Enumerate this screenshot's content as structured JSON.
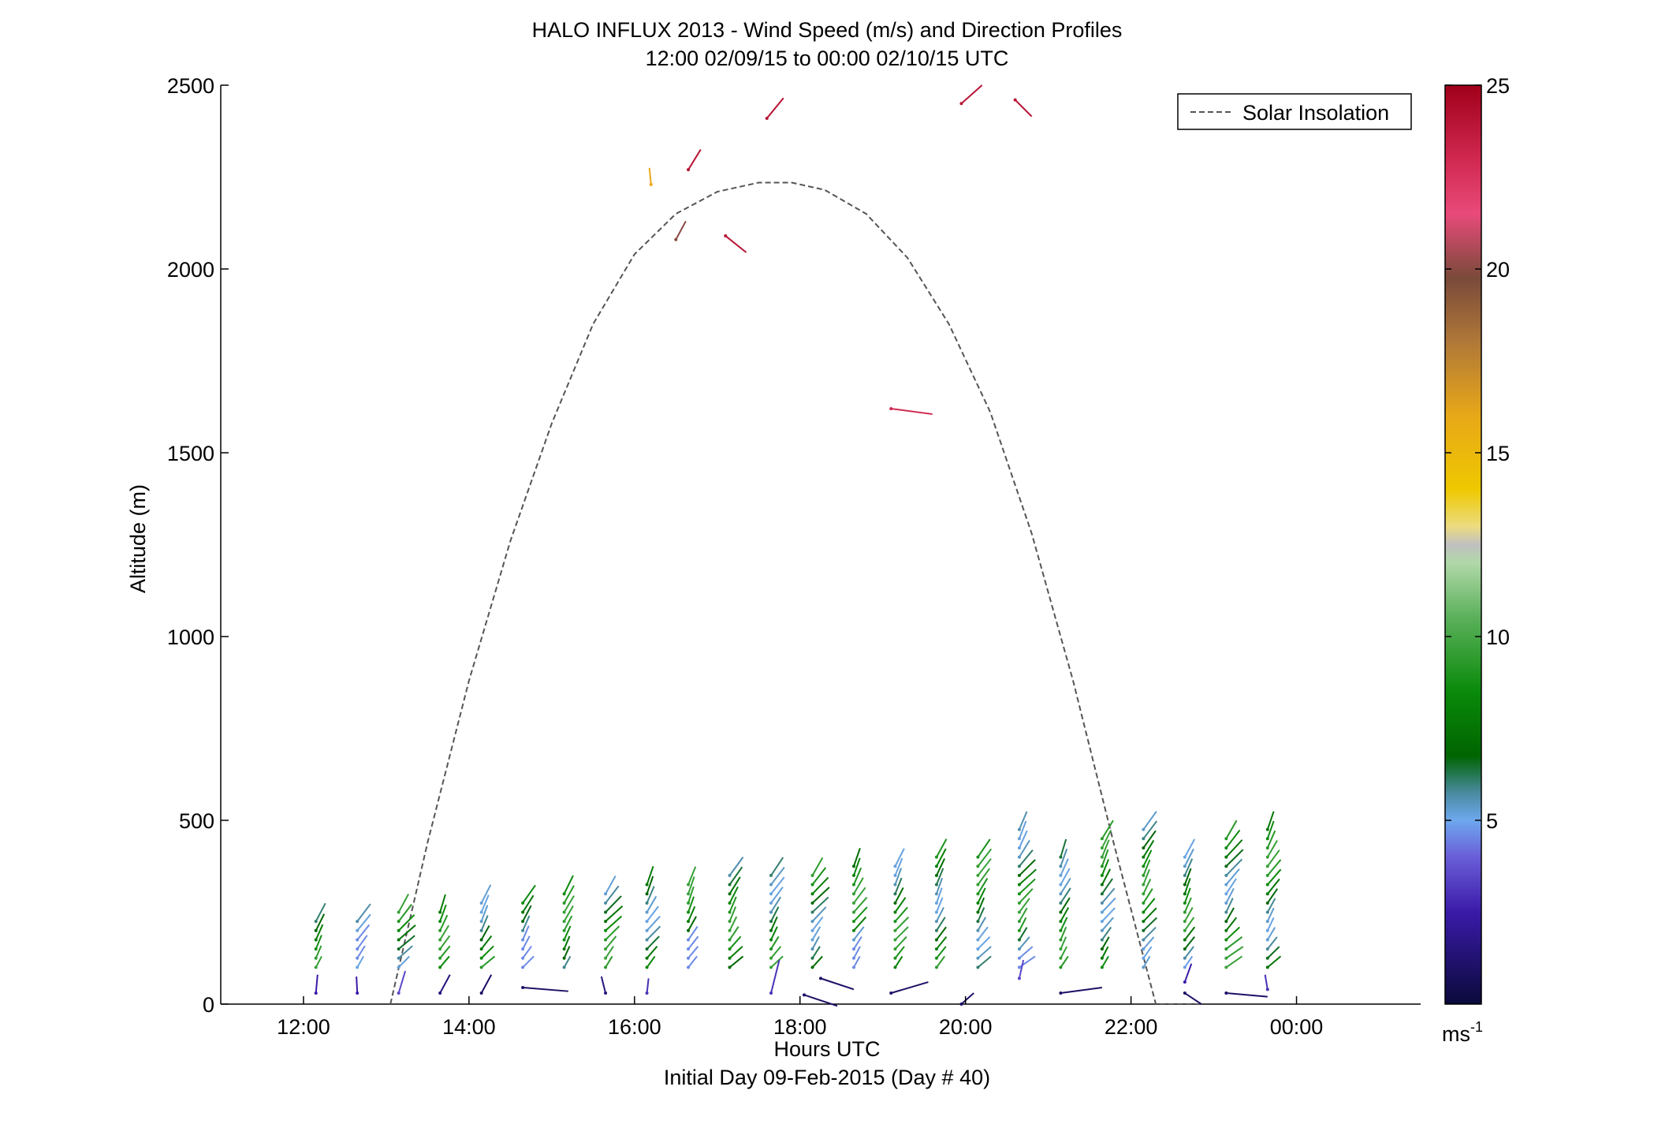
{
  "chart_data": {
    "type": "quiver",
    "title": "HALO INFLUX 2013 - Wind Speed (m/s) and Direction Profiles",
    "subtitle": "12:00 02/09/15 to 00:00 02/10/15  UTC",
    "xlabel": "Hours UTC",
    "xlabel2": "Initial Day 09-Feb-2015 (Day # 40)",
    "ylabel": "Altitude (m)",
    "xlim": [
      11,
      25.5
    ],
    "ylim": [
      0,
      2500
    ],
    "x_ticks": [
      12,
      14,
      16,
      18,
      20,
      22,
      24
    ],
    "x_tick_labels": [
      "12:00",
      "14:00",
      "16:00",
      "18:00",
      "20:00",
      "22:00",
      "00:00"
    ],
    "y_ticks": [
      0,
      500,
      1000,
      1500,
      2000,
      2500
    ],
    "y_tick_labels": [
      "0",
      "500",
      "1000",
      "1500",
      "2000",
      "2500"
    ],
    "legend": {
      "entries": [
        "Solar Insolation"
      ],
      "placement": "top-right"
    },
    "colorbar": {
      "range": [
        0,
        25
      ],
      "ticks": [
        5,
        10,
        15,
        20,
        25
      ],
      "tick_labels": [
        "5",
        "10",
        "15",
        "20",
        "25"
      ],
      "unit_label": "ms-1"
    },
    "solar_insolation": {
      "style": "dashed",
      "color": "#555555",
      "x": [
        13.05,
        13.5,
        14.0,
        14.5,
        15.0,
        15.5,
        16.0,
        16.5,
        17.0,
        17.5,
        17.9,
        18.3,
        18.8,
        19.3,
        19.8,
        20.3,
        20.8,
        21.3,
        21.8,
        22.3,
        22.8,
        22.85
      ],
      "y": [
        0,
        440,
        880,
        1260,
        1580,
        1850,
        2040,
        2150,
        2210,
        2235,
        2235,
        2215,
        2150,
        2030,
        1850,
        1610,
        1280,
        880,
        430,
        0,
        -20,
        0
      ]
    },
    "profile_times": [
      12.15,
      12.65,
      13.15,
      13.65,
      14.15,
      14.65,
      15.15,
      15.65,
      16.15,
      16.65,
      17.15,
      17.65,
      18.15,
      18.65,
      19.15,
      19.65,
      20.15,
      20.65,
      21.15,
      21.65,
      22.15,
      22.65,
      23.15,
      23.65
    ],
    "surface_vectors": [
      {
        "x": 12.15,
        "y": 30,
        "dx": 0.02,
        "dy": 50,
        "speed": 2.5
      },
      {
        "x": 12.65,
        "y": 30,
        "dx": -0.01,
        "dy": 45,
        "speed": 2.5
      },
      {
        "x": 13.15,
        "y": 30,
        "dx": 0.08,
        "dy": 60,
        "speed": 3.5
      },
      {
        "x": 13.65,
        "y": 30,
        "dx": 0.12,
        "dy": 50,
        "speed": 1.5
      },
      {
        "x": 14.15,
        "y": 30,
        "dx": 0.12,
        "dy": 50,
        "speed": 1.0
      },
      {
        "x": 14.65,
        "y": 45,
        "dx": 0.55,
        "dy": -10,
        "speed": 1.0
      },
      {
        "x": 15.65,
        "y": 30,
        "dx": -0.05,
        "dy": 45,
        "speed": 1.5
      },
      {
        "x": 16.15,
        "y": 30,
        "dx": 0.02,
        "dy": 40,
        "speed": 3.0
      },
      {
        "x": 17.65,
        "y": 30,
        "dx": 0.1,
        "dy": 90,
        "speed": 3.0
      },
      {
        "x": 18.05,
        "y": 25,
        "dx": 0.4,
        "dy": -30,
        "speed": 1.0
      },
      {
        "x": 18.25,
        "y": 70,
        "dx": 0.4,
        "dy": -30,
        "speed": 1.0
      },
      {
        "x": 19.1,
        "y": 30,
        "dx": 0.45,
        "dy": 30,
        "speed": 1.0
      },
      {
        "x": 19.95,
        "y": 0,
        "dx": 0.15,
        "dy": 30,
        "speed": 1.0
      },
      {
        "x": 20.65,
        "y": 70,
        "dx": 0.05,
        "dy": 50,
        "speed": 3.5
      },
      {
        "x": 21.15,
        "y": 30,
        "dx": 0.5,
        "dy": 15,
        "speed": 1.0
      },
      {
        "x": 22.65,
        "y": 60,
        "dx": 0.08,
        "dy": 50,
        "speed": 2.5
      },
      {
        "x": 22.65,
        "y": 30,
        "dx": 0.2,
        "dy": -30,
        "speed": 1.0
      },
      {
        "x": 23.15,
        "y": 30,
        "dx": 0.5,
        "dy": -10,
        "speed": 1.0
      },
      {
        "x": 23.65,
        "y": 40,
        "dx": -0.03,
        "dy": 40,
        "speed": 3.0
      }
    ],
    "upper_vectors": [
      {
        "x": 16.2,
        "y": 2230,
        "dx": -0.02,
        "dy": 45,
        "speed": 16
      },
      {
        "x": 16.5,
        "y": 2080,
        "dx": 0.12,
        "dy": 50,
        "speed": 20
      },
      {
        "x": 16.65,
        "y": 2270,
        "dx": 0.15,
        "dy": 55,
        "speed": 24
      },
      {
        "x": 17.1,
        "y": 2090,
        "dx": 0.25,
        "dy": -45,
        "speed": 24
      },
      {
        "x": 17.6,
        "y": 2410,
        "dx": 0.2,
        "dy": 55,
        "speed": 24
      },
      {
        "x": 19.1,
        "y": 1620,
        "dx": 0.5,
        "dy": -15,
        "speed": 23
      },
      {
        "x": 19.95,
        "y": 2450,
        "dx": 0.25,
        "dy": 50,
        "speed": 24
      },
      {
        "x": 20.6,
        "y": 2460,
        "dx": 0.2,
        "dy": -45,
        "speed": 24
      }
    ]
  }
}
